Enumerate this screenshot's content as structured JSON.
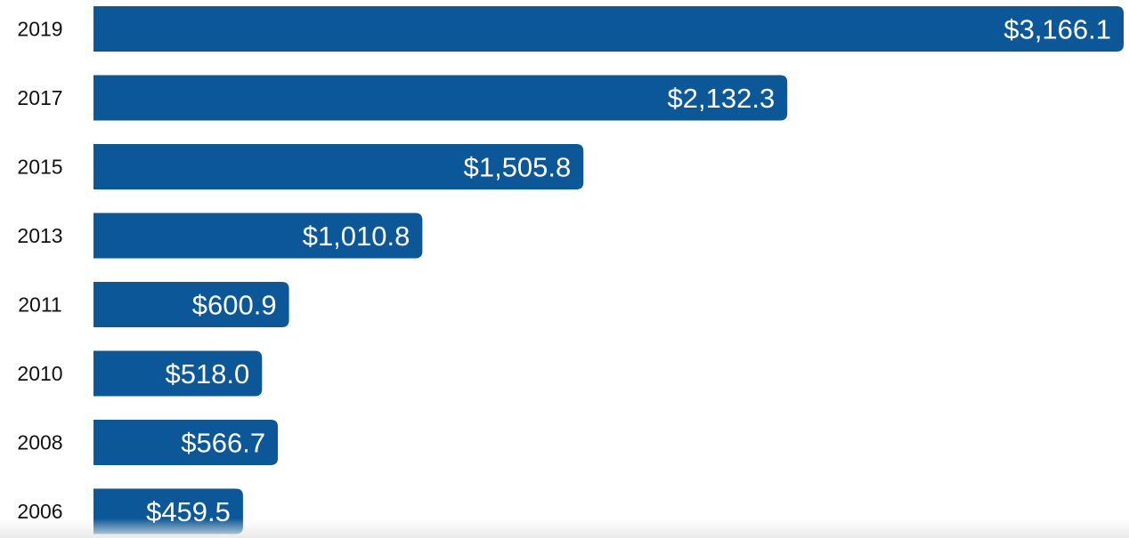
{
  "chart_data": {
    "type": "bar",
    "orientation": "horizontal",
    "categories": [
      "2019",
      "2017",
      "2015",
      "2013",
      "2011",
      "2010",
      "2008",
      "2006"
    ],
    "values": [
      3166.1,
      2132.3,
      1505.8,
      1010.8,
      600.9,
      518.0,
      566.7,
      459.5
    ],
    "labels": [
      "$3,166.1",
      "$2,132.3",
      "$1,505.8",
      "$1,010.8",
      "$600.9",
      "$518.0",
      "$566.7",
      "$459.5"
    ],
    "title": "",
    "xlabel": "",
    "ylabel": "",
    "grid": false,
    "legend": "none",
    "bar_color": "#0b5797",
    "label_color": "#ffffff",
    "category_color": "#111111"
  }
}
